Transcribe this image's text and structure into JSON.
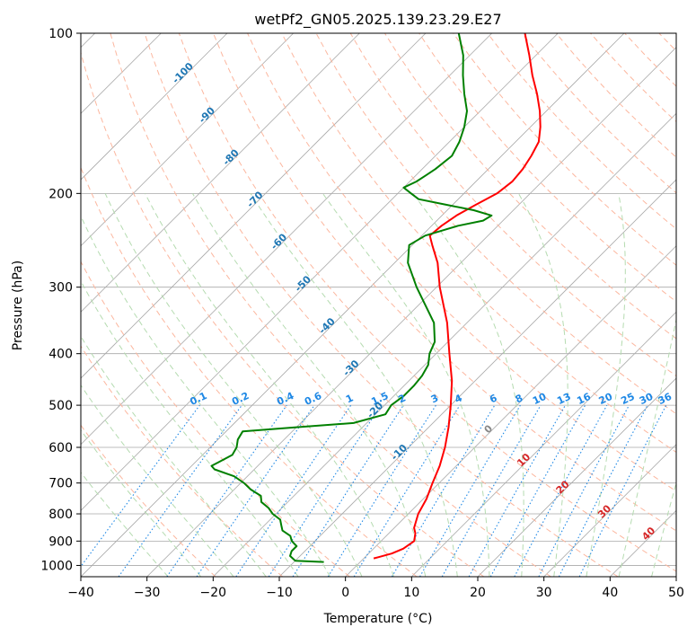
{
  "chart_data": {
    "type": "line",
    "title": "wetPf2_GN05.2025.139.23.29.E27",
    "xlabel": "Temperature (°C)",
    "ylabel": "Pressure (hPa)",
    "xlim": [
      -40,
      50
    ],
    "ylim": [
      1050,
      100
    ],
    "y_scale": "log",
    "skew_t": true,
    "grid": true,
    "x_ticks": [
      -40,
      -30,
      -20,
      -10,
      0,
      10,
      20,
      30,
      40,
      50
    ],
    "y_ticks": [
      100,
      200,
      300,
      400,
      500,
      600,
      700,
      800,
      900,
      1000
    ],
    "series": [
      {
        "color": "#ff0000",
        "pressure": [
          970,
          965,
          950,
          930,
          900,
          870,
          850,
          800,
          750,
          700,
          650,
          600,
          550,
          500,
          450,
          400,
          350,
          300,
          270,
          250,
          240,
          230,
          220,
          210,
          200,
          190,
          180,
          170,
          160,
          150,
          140,
          130,
          120,
          110,
          100
        ],
        "temperature": [
          1.5,
          2.0,
          3.5,
          4.5,
          5.0,
          4.0,
          3.0,
          1.5,
          0.5,
          -1.0,
          -2.5,
          -4.5,
          -7.0,
          -10.0,
          -13.5,
          -18.0,
          -23.0,
          -29.5,
          -33.5,
          -37.0,
          -38.8,
          -38.5,
          -37.8,
          -36.5,
          -35.0,
          -34.5,
          -34.8,
          -35.5,
          -36.5,
          -38.5,
          -41.0,
          -44.0,
          -47.5,
          -51.0,
          -55.0
        ]
      },
      {
        "color": "#008000",
        "pressure": [
          985,
          980,
          960,
          940,
          920,
          900,
          880,
          860,
          840,
          820,
          800,
          780,
          760,
          740,
          720,
          700,
          680,
          660,
          650,
          640,
          620,
          600,
          580,
          560,
          550,
          540,
          520,
          500,
          480,
          460,
          440,
          420,
          400,
          380,
          350,
          300,
          270,
          250,
          240,
          230,
          225,
          220,
          215,
          210,
          205,
          200,
          195,
          190,
          185,
          180,
          170,
          160,
          150,
          140,
          130,
          120,
          110,
          100
        ],
        "temperature": [
          -5.5,
          -10,
          -11.5,
          -12,
          -12,
          -13.5,
          -14.5,
          -16.5,
          -17.5,
          -18.5,
          -20.5,
          -22,
          -24,
          -25,
          -27.5,
          -29.5,
          -32,
          -36,
          -37,
          -36.5,
          -35.5,
          -36,
          -37,
          -37.5,
          -30,
          -22,
          -18.5,
          -19,
          -18.5,
          -18.5,
          -18.8,
          -19.5,
          -21,
          -22,
          -25,
          -33,
          -38,
          -40.5,
          -39.5,
          -36,
          -33,
          -32.5,
          -36,
          -41,
          -46,
          -48,
          -50,
          -49,
          -48.5,
          -48,
          -47.5,
          -48.5,
          -50,
          -52,
          -55,
          -58,
          -61,
          -65
        ]
      }
    ],
    "mixing_ratio_labels": [
      "0.1",
      "0.2",
      "0.4",
      "0.6",
      "1",
      "1.5",
      "2",
      "3",
      "4",
      "6",
      "8",
      "10",
      "13",
      "16",
      "20",
      "25",
      "30",
      "36"
    ],
    "dry_adiabat_labels": [
      "-100",
      "-90",
      "-80",
      "-70",
      "-60",
      "-50",
      "-40",
      "-30",
      "-20",
      "-10"
    ],
    "moist_adiabat_labels": [
      "0",
      "10",
      "20",
      "30",
      "40"
    ],
    "colors": {
      "temperature": "#ff0000",
      "dewpoint": "#008000",
      "isotherm": "#a9a9a9",
      "dry_adiabat": "#fcb79f",
      "moist_adiabat": "#b5dbb0",
      "mixing_ratio": "#1e88e5",
      "dry_label": "#1f77b4",
      "moist_label": "#d62728"
    }
  }
}
